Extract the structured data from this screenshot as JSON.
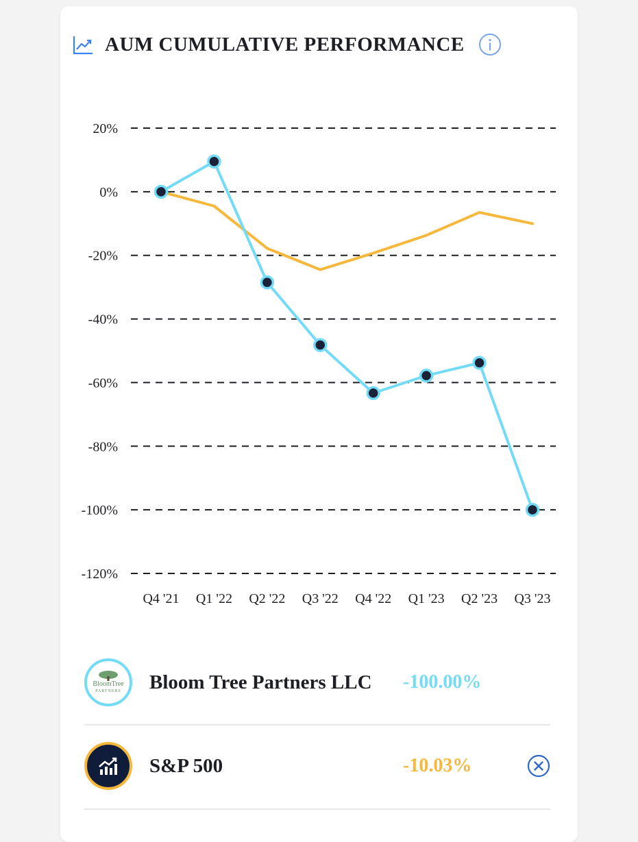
{
  "header": {
    "title": "AUM CUMULATIVE PERFORMANCE",
    "trend_icon": "trend-up-icon",
    "info_icon": "info-icon"
  },
  "chart_data": {
    "type": "line",
    "title": "AUM CUMULATIVE PERFORMANCE",
    "xlabel": "",
    "ylabel": "",
    "categories": [
      "Q4 '21",
      "Q1 '22",
      "Q2 '22",
      "Q3 '22",
      "Q4 '22",
      "Q1 '23",
      "Q2 '23",
      "Q3 '23"
    ],
    "y_ticks": [
      20,
      0,
      -20,
      -40,
      -60,
      -80,
      -100,
      -120
    ],
    "y_tick_labels": [
      "20%",
      "0%",
      "-20%",
      "-40%",
      "-60%",
      "-80%",
      "-100%",
      "-120%"
    ],
    "ylim": [
      -120,
      20
    ],
    "grid": "dashed-horizontal",
    "series": [
      {
        "name": "Bloom Tree Partners LLC",
        "color": "#74dbf7",
        "markers": true,
        "values": [
          0,
          9.5,
          -28.5,
          -48.2,
          -63.3,
          -57.8,
          -53.8,
          -100
        ]
      },
      {
        "name": "S&P 500",
        "color": "#f5b83d",
        "markers": false,
        "values": [
          0,
          -4.5,
          -17.8,
          -24.5,
          -19.3,
          -13.7,
          -6.5,
          -10.03
        ]
      }
    ]
  },
  "legend": {
    "rows": [
      {
        "name": "Bloom Tree Partners LLC",
        "value": "-100.00%",
        "color": "#74dbf7",
        "logo_text_top": "BloomTree",
        "logo_text_bottom": "PARTNERS",
        "logo_icon": "bloom-tree-logo-icon"
      },
      {
        "name": "S&P 500",
        "value": "-10.03%",
        "color": "#f5b83d",
        "logo_icon": "chart-growth-icon",
        "remove_icon": "close-circle-icon"
      }
    ]
  }
}
